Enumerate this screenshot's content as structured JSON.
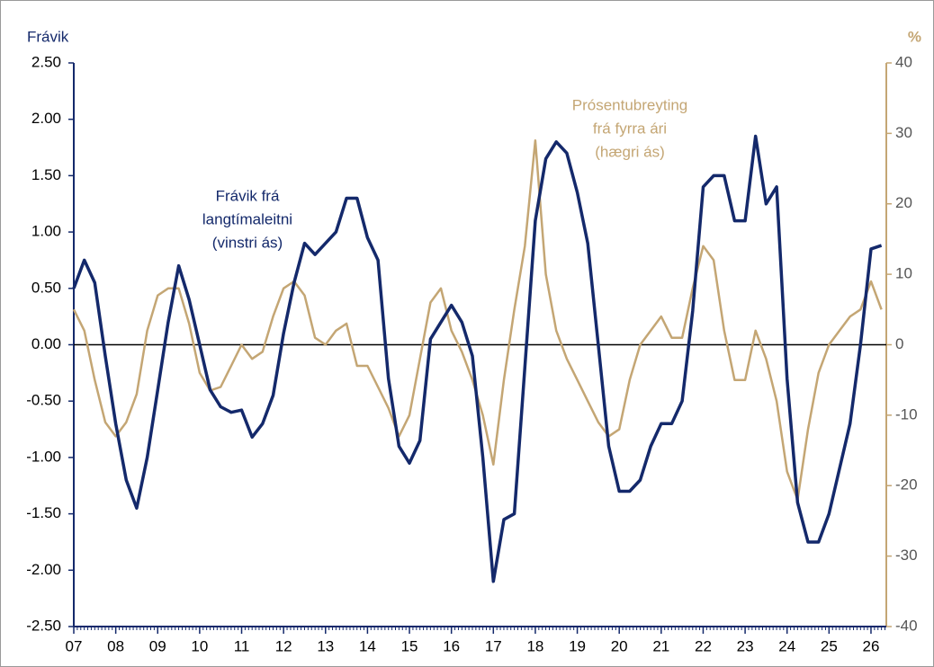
{
  "chart_data": {
    "type": "line",
    "y_label": "Frávik",
    "y2_label": "%",
    "categories": [
      "07",
      null,
      null,
      null,
      "08",
      null,
      null,
      null,
      "09",
      null,
      null,
      null,
      "10",
      null,
      null,
      null,
      "11",
      null,
      null,
      null,
      "12",
      null,
      null,
      null,
      "13",
      null,
      null,
      null,
      "14",
      null,
      null,
      null,
      "15",
      null,
      null,
      null,
      "16",
      null,
      null,
      null,
      "17",
      null,
      null,
      null,
      "18",
      null,
      null,
      null,
      "19",
      null,
      null,
      null,
      "20",
      null,
      null,
      null,
      "21",
      null,
      null,
      null,
      "22",
      null,
      null,
      null,
      "23",
      null,
      null,
      null,
      "24",
      null,
      null,
      null,
      "25",
      null,
      null,
      null,
      "26",
      null
    ],
    "series": [
      {
        "name": "Frávik frá langtímaleitni (vinstri ás)",
        "color": "#14296b",
        "axis": "y",
        "values": [
          0.5,
          0.75,
          0.55,
          -0.1,
          -0.7,
          -1.2,
          -1.45,
          -1.0,
          -0.4,
          0.2,
          0.7,
          0.4,
          0.0,
          -0.4,
          -0.55,
          -0.6,
          -0.58,
          -0.82,
          -0.7,
          -0.45,
          0.1,
          0.55,
          0.9,
          0.8,
          0.9,
          1.0,
          1.3,
          1.3,
          0.95,
          0.75,
          -0.3,
          -0.9,
          -1.05,
          -0.85,
          0.05,
          0.2,
          0.35,
          0.2,
          -0.1,
          -1.0,
          -2.1,
          -1.55,
          -1.5,
          -0.2,
          1.1,
          1.65,
          1.8,
          1.7,
          1.35,
          0.9,
          0.0,
          -0.9,
          -1.3,
          -1.3,
          -1.2,
          -0.9,
          -0.7,
          -0.7,
          -0.5,
          0.3,
          1.4,
          1.5,
          1.5,
          1.1,
          1.1,
          1.85,
          1.25,
          1.4,
          -0.3,
          -1.4,
          -1.75,
          -1.75,
          -1.5,
          -1.1,
          -0.7,
          0.0,
          0.85,
          0.88
        ]
      },
      {
        "name": "Prósentubreyting frá fyrra ári (hægri ás)",
        "color": "#c4a674",
        "axis": "y2",
        "values": [
          5,
          2,
          -5,
          -11,
          -13,
          -11,
          -7,
          2,
          7,
          8,
          8,
          3,
          -4,
          -6.5,
          -6,
          -3,
          0,
          -2,
          -1,
          4,
          8,
          9,
          7,
          1,
          0,
          2,
          3,
          -3,
          -3,
          -6,
          -9,
          -13,
          -10,
          -2,
          6,
          8,
          2,
          -1,
          -5,
          -10,
          -17,
          -5,
          5,
          14,
          29,
          10,
          2,
          -2,
          -5,
          -8,
          -11,
          -13,
          -12,
          -5,
          0,
          2,
          4,
          1,
          1,
          8,
          14,
          12,
          2,
          -5,
          -5,
          2,
          -2,
          -8,
          -18,
          -22,
          -12,
          -4,
          0,
          2,
          4,
          5,
          9,
          5
        ]
      }
    ],
    "annotations": [
      {
        "lines": [
          "Frávik frá",
          "langtímaleitni",
          "(vinstri ás)"
        ],
        "series": 0
      },
      {
        "lines": [
          "Prósentubreyting",
          "frá fyrra ári",
          "(hægri ás)"
        ],
        "series": 1
      }
    ],
    "ylim": [
      -2.5,
      2.5
    ],
    "yticks": [
      {
        "value": -2.5,
        "label": "-2.50"
      },
      {
        "value": -2,
        "label": "-2.00"
      },
      {
        "value": -1.5,
        "label": "-1.50"
      },
      {
        "value": -1,
        "label": "-1.00"
      },
      {
        "value": -0.5,
        "label": "-0.50"
      },
      {
        "value": 0,
        "label": "0.00"
      },
      {
        "value": 0.5,
        "label": "0.50"
      },
      {
        "value": 1,
        "label": "1.00"
      },
      {
        "value": 1.5,
        "label": "1.50"
      },
      {
        "value": 2,
        "label": "2.00"
      },
      {
        "value": 2.5,
        "label": "2.50"
      }
    ],
    "y2lim": [
      -40,
      40
    ],
    "y2ticks": [
      -40,
      -30,
      -20,
      -10,
      0,
      10,
      20,
      30,
      40
    ],
    "zero_line": true
  }
}
